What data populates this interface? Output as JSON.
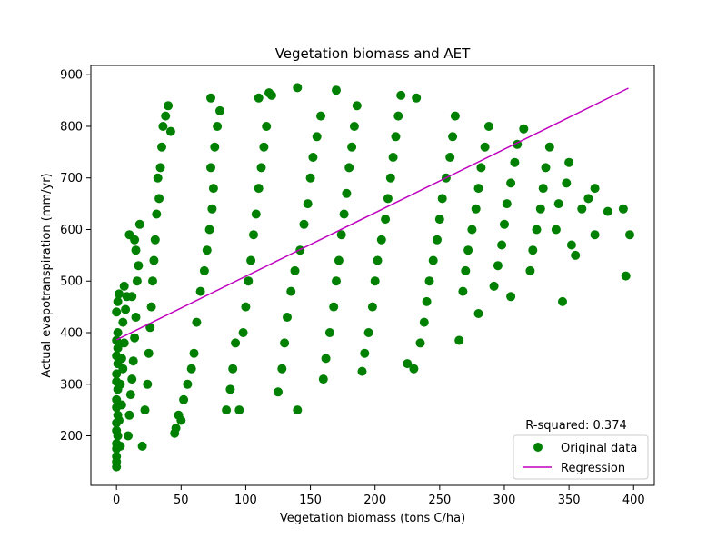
{
  "chart_data": {
    "type": "scatter",
    "title": "Vegetation biomass and AET",
    "xlabel": "Vegetation biomass (tons C/ha)",
    "ylabel": "Actual evapotranspiration (mm/yr)",
    "xlim": [
      -19.8,
      416.0
    ],
    "ylim": [
      104,
      918
    ],
    "xticks": [
      0,
      50,
      100,
      150,
      200,
      250,
      300,
      350,
      400
    ],
    "yticks": [
      200,
      300,
      400,
      500,
      600,
      700,
      800,
      900
    ],
    "grid": false,
    "legend_position": "bottom-right",
    "annotation": "R-squared: 0.374",
    "series": [
      {
        "name": "Original data",
        "kind": "scatter",
        "color": "#008000",
        "points": [
          [
            0,
            140
          ],
          [
            0,
            150
          ],
          [
            0,
            160
          ],
          [
            0,
            175
          ],
          [
            0,
            185
          ],
          [
            1,
            200
          ],
          [
            0,
            210
          ],
          [
            0,
            225
          ],
          [
            1,
            240
          ],
          [
            0,
            255
          ],
          [
            0,
            270
          ],
          [
            1,
            290
          ],
          [
            0,
            305
          ],
          [
            0,
            320
          ],
          [
            1,
            340
          ],
          [
            0,
            355
          ],
          [
            1,
            370
          ],
          [
            0,
            385
          ],
          [
            1,
            400
          ],
          [
            0,
            440
          ],
          [
            1,
            460
          ],
          [
            2,
            475
          ],
          [
            3,
            180
          ],
          [
            2,
            230
          ],
          [
            4,
            260
          ],
          [
            3,
            300
          ],
          [
            5,
            330
          ],
          [
            4,
            350
          ],
          [
            6,
            380
          ],
          [
            5,
            420
          ],
          [
            7,
            445
          ],
          [
            8,
            470
          ],
          [
            6,
            490
          ],
          [
            9,
            200
          ],
          [
            10,
            240
          ],
          [
            11,
            280
          ],
          [
            12,
            310
          ],
          [
            13,
            345
          ],
          [
            14,
            390
          ],
          [
            15,
            430
          ],
          [
            12,
            470
          ],
          [
            16,
            500
          ],
          [
            17,
            530
          ],
          [
            15,
            560
          ],
          [
            18,
            610
          ],
          [
            14,
            580
          ],
          [
            10,
            590
          ],
          [
            20,
            180
          ],
          [
            22,
            250
          ],
          [
            24,
            300
          ],
          [
            25,
            360
          ],
          [
            26,
            410
          ],
          [
            27,
            450
          ],
          [
            28,
            500
          ],
          [
            29,
            540
          ],
          [
            30,
            580
          ],
          [
            31,
            630
          ],
          [
            33,
            660
          ],
          [
            32,
            700
          ],
          [
            34,
            720
          ],
          [
            35,
            760
          ],
          [
            36,
            800
          ],
          [
            38,
            820
          ],
          [
            40,
            840
          ],
          [
            42,
            790
          ],
          [
            45,
            205
          ],
          [
            46,
            215
          ],
          [
            48,
            240
          ],
          [
            50,
            230
          ],
          [
            52,
            270
          ],
          [
            55,
            300
          ],
          [
            58,
            330
          ],
          [
            60,
            360
          ],
          [
            62,
            420
          ],
          [
            65,
            480
          ],
          [
            68,
            520
          ],
          [
            70,
            560
          ],
          [
            72,
            600
          ],
          [
            74,
            640
          ],
          [
            75,
            680
          ],
          [
            73,
            720
          ],
          [
            76,
            760
          ],
          [
            78,
            800
          ],
          [
            80,
            830
          ],
          [
            73,
            855
          ],
          [
            85,
            250
          ],
          [
            88,
            290
          ],
          [
            90,
            330
          ],
          [
            92,
            380
          ],
          [
            95,
            250
          ],
          [
            98,
            400
          ],
          [
            100,
            450
          ],
          [
            102,
            500
          ],
          [
            104,
            540
          ],
          [
            106,
            590
          ],
          [
            108,
            630
          ],
          [
            110,
            680
          ],
          [
            112,
            720
          ],
          [
            114,
            760
          ],
          [
            116,
            800
          ],
          [
            110,
            855
          ],
          [
            118,
            865
          ],
          [
            120,
            860
          ],
          [
            125,
            285
          ],
          [
            128,
            330
          ],
          [
            130,
            380
          ],
          [
            132,
            430
          ],
          [
            135,
            480
          ],
          [
            138,
            520
          ],
          [
            140,
            250
          ],
          [
            142,
            560
          ],
          [
            145,
            610
          ],
          [
            148,
            650
          ],
          [
            150,
            700
          ],
          [
            152,
            740
          ],
          [
            155,
            780
          ],
          [
            158,
            820
          ],
          [
            140,
            875
          ],
          [
            160,
            310
          ],
          [
            162,
            350
          ],
          [
            165,
            400
          ],
          [
            168,
            450
          ],
          [
            170,
            500
          ],
          [
            172,
            540
          ],
          [
            174,
            590
          ],
          [
            176,
            630
          ],
          [
            178,
            670
          ],
          [
            180,
            720
          ],
          [
            182,
            760
          ],
          [
            184,
            800
          ],
          [
            186,
            840
          ],
          [
            170,
            870
          ],
          [
            190,
            325
          ],
          [
            192,
            360
          ],
          [
            195,
            400
          ],
          [
            198,
            450
          ],
          [
            200,
            500
          ],
          [
            202,
            540
          ],
          [
            205,
            580
          ],
          [
            208,
            620
          ],
          [
            210,
            660
          ],
          [
            212,
            700
          ],
          [
            214,
            740
          ],
          [
            216,
            780
          ],
          [
            218,
            820
          ],
          [
            220,
            860
          ],
          [
            225,
            340
          ],
          [
            230,
            330
          ],
          [
            235,
            380
          ],
          [
            238,
            420
          ],
          [
            240,
            460
          ],
          [
            242,
            500
          ],
          [
            245,
            540
          ],
          [
            248,
            580
          ],
          [
            250,
            620
          ],
          [
            252,
            660
          ],
          [
            255,
            700
          ],
          [
            258,
            740
          ],
          [
            260,
            780
          ],
          [
            262,
            820
          ],
          [
            232,
            855
          ],
          [
            265,
            385
          ],
          [
            268,
            480
          ],
          [
            270,
            520
          ],
          [
            272,
            560
          ],
          [
            275,
            600
          ],
          [
            278,
            640
          ],
          [
            280,
            680
          ],
          [
            282,
            720
          ],
          [
            285,
            760
          ],
          [
            288,
            800
          ],
          [
            280,
            437
          ],
          [
            292,
            490
          ],
          [
            295,
            530
          ],
          [
            298,
            570
          ],
          [
            300,
            610
          ],
          [
            302,
            650
          ],
          [
            305,
            690
          ],
          [
            308,
            730
          ],
          [
            310,
            765
          ],
          [
            315,
            795
          ],
          [
            305,
            470
          ],
          [
            320,
            520
          ],
          [
            322,
            560
          ],
          [
            325,
            600
          ],
          [
            328,
            640
          ],
          [
            330,
            680
          ],
          [
            332,
            720
          ],
          [
            335,
            760
          ],
          [
            340,
            600
          ],
          [
            342,
            650
          ],
          [
            345,
            460
          ],
          [
            348,
            690
          ],
          [
            350,
            730
          ],
          [
            352,
            570
          ],
          [
            355,
            550
          ],
          [
            360,
            640
          ],
          [
            365,
            660
          ],
          [
            370,
            590
          ],
          [
            370,
            680
          ],
          [
            380,
            635
          ],
          [
            392,
            640
          ],
          [
            394,
            510
          ],
          [
            397,
            590
          ]
        ]
      },
      {
        "name": "Regression",
        "kind": "line",
        "color": "#bf00bf",
        "x": [
          0,
          396
        ],
        "y": [
          386,
          874
        ]
      }
    ]
  }
}
